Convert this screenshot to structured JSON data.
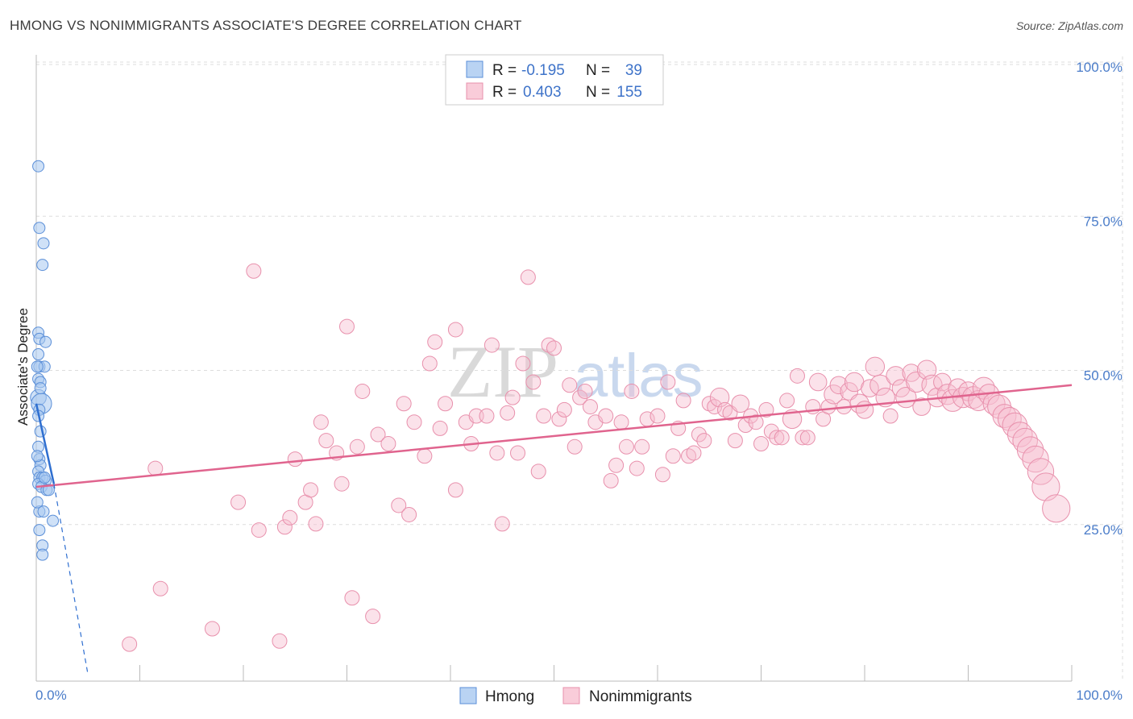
{
  "title": "HMONG VS NONIMMIGRANTS ASSOCIATE'S DEGREE CORRELATION CHART",
  "source": "Source: ZipAtlas.com",
  "watermark": {
    "zip": "ZIP",
    "atlas": "atlas"
  },
  "colors": {
    "hmong_fill": "#a8c8f0",
    "hmong_stroke": "#5b8fd8",
    "hmong_line": "#2f6fd0",
    "non_fill": "#f7bfd0",
    "non_stroke": "#e890ac",
    "non_line": "#e0648e",
    "grid": "#dddddd",
    "tick_text": "#4a7cc9"
  },
  "legend_top": {
    "rows": [
      {
        "r_label": "R =",
        "r_value": "-0.195",
        "n_label": "N =",
        "n_value": "39"
      },
      {
        "r_label": "R =",
        "r_value": "0.403",
        "n_label": "N =",
        "n_value": "155"
      }
    ]
  },
  "legend_bottom": {
    "hmong": "Hmong",
    "nonimmigrants": "Nonimmigrants"
  },
  "chart_data": {
    "type": "scatter",
    "title": "HMONG VS NONIMMIGRANTS ASSOCIATE'S DEGREE CORRELATION CHART",
    "xlabel": "",
    "ylabel": "Associate's Degree",
    "xlim": [
      0,
      100
    ],
    "ylim": [
      0,
      100
    ],
    "x_tick_labels": [
      "0.0%",
      "100.0%"
    ],
    "y_tick_labels": [
      "100.0%",
      "75.0%",
      "50.0%",
      "25.0%"
    ],
    "y_ticks": [
      100,
      75,
      50,
      25
    ],
    "series": [
      {
        "name": "Hmong",
        "R": -0.195,
        "N": 39,
        "trend_solid": {
          "x": [
            0.0,
            1.7
          ],
          "y": [
            45.0,
            32.0
          ]
        },
        "trend_dashed": {
          "x": [
            1.7,
            5.0
          ],
          "y": [
            32.0,
            1.0
          ]
        },
        "points": [
          {
            "x": 0.2,
            "y": 83.5,
            "s": 1
          },
          {
            "x": 0.3,
            "y": 73.5,
            "s": 1
          },
          {
            "x": 0.7,
            "y": 71.0,
            "s": 1
          },
          {
            "x": 0.6,
            "y": 67.5,
            "s": 1
          },
          {
            "x": 0.2,
            "y": 56.5,
            "s": 1
          },
          {
            "x": 0.3,
            "y": 55.5,
            "s": 1
          },
          {
            "x": 0.9,
            "y": 55.0,
            "s": 1
          },
          {
            "x": 0.2,
            "y": 53.0,
            "s": 1
          },
          {
            "x": 0.3,
            "y": 51.0,
            "s": 1
          },
          {
            "x": 0.8,
            "y": 51.0,
            "s": 1
          },
          {
            "x": 0.2,
            "y": 49.0,
            "s": 1
          },
          {
            "x": 0.4,
            "y": 48.5,
            "s": 1
          },
          {
            "x": 0.2,
            "y": 46.0,
            "s": 1.4
          },
          {
            "x": 0.5,
            "y": 45.0,
            "s": 1.8
          },
          {
            "x": 0.3,
            "y": 44.0,
            "s": 1
          },
          {
            "x": 0.2,
            "y": 43.0,
            "s": 1
          },
          {
            "x": 0.4,
            "y": 40.5,
            "s": 1
          },
          {
            "x": 0.2,
            "y": 38.0,
            "s": 1
          },
          {
            "x": 0.3,
            "y": 36.0,
            "s": 1
          },
          {
            "x": 0.4,
            "y": 35.0,
            "s": 1
          },
          {
            "x": 0.2,
            "y": 34.0,
            "s": 1
          },
          {
            "x": 0.3,
            "y": 33.0,
            "s": 1
          },
          {
            "x": 0.6,
            "y": 33.0,
            "s": 1
          },
          {
            "x": 0.9,
            "y": 32.5,
            "s": 1
          },
          {
            "x": 0.2,
            "y": 32.0,
            "s": 1
          },
          {
            "x": 0.5,
            "y": 31.5,
            "s": 1
          },
          {
            "x": 1.0,
            "y": 31.0,
            "s": 1
          },
          {
            "x": 1.2,
            "y": 31.0,
            "s": 1
          },
          {
            "x": 0.3,
            "y": 27.5,
            "s": 1
          },
          {
            "x": 0.7,
            "y": 27.5,
            "s": 1
          },
          {
            "x": 1.6,
            "y": 26.0,
            "s": 1
          },
          {
            "x": 0.3,
            "y": 24.5,
            "s": 1
          },
          {
            "x": 0.6,
            "y": 22.0,
            "s": 1
          },
          {
            "x": 0.6,
            "y": 20.5,
            "s": 1
          },
          {
            "x": 0.1,
            "y": 36.5,
            "s": 1
          },
          {
            "x": 0.1,
            "y": 29.0,
            "s": 1
          },
          {
            "x": 0.4,
            "y": 47.5,
            "s": 1
          },
          {
            "x": 0.1,
            "y": 51.0,
            "s": 1
          },
          {
            "x": 0.8,
            "y": 33.0,
            "s": 1
          }
        ]
      },
      {
        "name": "Nonimmigrants",
        "R": 0.403,
        "N": 155,
        "trend_solid": {
          "x": [
            0.0,
            100.0
          ],
          "y": [
            31.5,
            48.0
          ]
        },
        "points": [
          {
            "x": 9,
            "y": 6,
            "s": 1
          },
          {
            "x": 12,
            "y": 15,
            "s": 1
          },
          {
            "x": 11.5,
            "y": 34.5,
            "s": 1
          },
          {
            "x": 17,
            "y": 8.5,
            "s": 1
          },
          {
            "x": 19.5,
            "y": 29,
            "s": 1
          },
          {
            "x": 21,
            "y": 66.5,
            "s": 1
          },
          {
            "x": 21.5,
            "y": 24.5,
            "s": 1
          },
          {
            "x": 23.5,
            "y": 6.5,
            "s": 1
          },
          {
            "x": 24,
            "y": 25,
            "s": 1
          },
          {
            "x": 24.5,
            "y": 26.5,
            "s": 1
          },
          {
            "x": 25,
            "y": 36,
            "s": 1
          },
          {
            "x": 26,
            "y": 29,
            "s": 1
          },
          {
            "x": 26.5,
            "y": 31,
            "s": 1
          },
          {
            "x": 27,
            "y": 25.5,
            "s": 1
          },
          {
            "x": 27.5,
            "y": 42,
            "s": 1
          },
          {
            "x": 28,
            "y": 39,
            "s": 1
          },
          {
            "x": 29,
            "y": 37,
            "s": 1
          },
          {
            "x": 29.5,
            "y": 32,
            "s": 1
          },
          {
            "x": 30,
            "y": 57.5,
            "s": 1
          },
          {
            "x": 30.5,
            "y": 13.5,
            "s": 1
          },
          {
            "x": 31,
            "y": 38,
            "s": 1
          },
          {
            "x": 31.5,
            "y": 47,
            "s": 1
          },
          {
            "x": 32.5,
            "y": 10.5,
            "s": 1
          },
          {
            "x": 33,
            "y": 40,
            "s": 1
          },
          {
            "x": 34,
            "y": 38.5,
            "s": 1
          },
          {
            "x": 35,
            "y": 28.5,
            "s": 1
          },
          {
            "x": 35.5,
            "y": 45,
            "s": 1
          },
          {
            "x": 36,
            "y": 27,
            "s": 1
          },
          {
            "x": 36.5,
            "y": 42,
            "s": 1
          },
          {
            "x": 37.5,
            "y": 36.5,
            "s": 1
          },
          {
            "x": 38,
            "y": 51.5,
            "s": 1
          },
          {
            "x": 38.5,
            "y": 55,
            "s": 1
          },
          {
            "x": 39,
            "y": 41,
            "s": 1
          },
          {
            "x": 39.5,
            "y": 45,
            "s": 1
          },
          {
            "x": 40.5,
            "y": 57,
            "s": 1
          },
          {
            "x": 40.5,
            "y": 31,
            "s": 1
          },
          {
            "x": 41.5,
            "y": 42,
            "s": 1
          },
          {
            "x": 42,
            "y": 38.5,
            "s": 1
          },
          {
            "x": 42.5,
            "y": 43,
            "s": 1
          },
          {
            "x": 43.5,
            "y": 43,
            "s": 1
          },
          {
            "x": 44,
            "y": 54.5,
            "s": 1
          },
          {
            "x": 44.5,
            "y": 37,
            "s": 1
          },
          {
            "x": 45,
            "y": 25.5,
            "s": 1
          },
          {
            "x": 45.5,
            "y": 43.5,
            "s": 1
          },
          {
            "x": 46,
            "y": 46,
            "s": 1
          },
          {
            "x": 46.5,
            "y": 37,
            "s": 1
          },
          {
            "x": 47,
            "y": 51.5,
            "s": 1
          },
          {
            "x": 47.5,
            "y": 65.5,
            "s": 1
          },
          {
            "x": 48,
            "y": 48.5,
            "s": 1
          },
          {
            "x": 48.5,
            "y": 34,
            "s": 1
          },
          {
            "x": 49,
            "y": 43,
            "s": 1
          },
          {
            "x": 49.5,
            "y": 54.5,
            "s": 1
          },
          {
            "x": 50,
            "y": 54,
            "s": 1
          },
          {
            "x": 50.5,
            "y": 42.5,
            "s": 1
          },
          {
            "x": 51,
            "y": 44,
            "s": 1
          },
          {
            "x": 51.5,
            "y": 48,
            "s": 1
          },
          {
            "x": 52,
            "y": 38,
            "s": 1
          },
          {
            "x": 52.5,
            "y": 46,
            "s": 1
          },
          {
            "x": 53,
            "y": 47,
            "s": 1
          },
          {
            "x": 53.5,
            "y": 44.5,
            "s": 1
          },
          {
            "x": 54,
            "y": 42,
            "s": 1
          },
          {
            "x": 55,
            "y": 43,
            "s": 1
          },
          {
            "x": 55.5,
            "y": 32.5,
            "s": 1
          },
          {
            "x": 56,
            "y": 35,
            "s": 1
          },
          {
            "x": 56.5,
            "y": 42,
            "s": 1
          },
          {
            "x": 57,
            "y": 38,
            "s": 1
          },
          {
            "x": 57.5,
            "y": 47,
            "s": 1
          },
          {
            "x": 58,
            "y": 34.5,
            "s": 1
          },
          {
            "x": 58.5,
            "y": 38,
            "s": 1
          },
          {
            "x": 59,
            "y": 42.5,
            "s": 1
          },
          {
            "x": 60,
            "y": 43,
            "s": 1
          },
          {
            "x": 60.5,
            "y": 33.5,
            "s": 1
          },
          {
            "x": 61,
            "y": 48.5,
            "s": 1
          },
          {
            "x": 61.5,
            "y": 36.5,
            "s": 1
          },
          {
            "x": 62,
            "y": 41,
            "s": 1
          },
          {
            "x": 62.5,
            "y": 45.5,
            "s": 1
          },
          {
            "x": 63,
            "y": 36.5,
            "s": 1
          },
          {
            "x": 63.5,
            "y": 37,
            "s": 1
          },
          {
            "x": 64,
            "y": 40,
            "s": 1
          },
          {
            "x": 64.5,
            "y": 39,
            "s": 1
          },
          {
            "x": 65,
            "y": 45,
            "s": 1
          },
          {
            "x": 65.5,
            "y": 44.5,
            "s": 1
          },
          {
            "x": 66,
            "y": 46,
            "s": 1.3
          },
          {
            "x": 66.5,
            "y": 44,
            "s": 1
          },
          {
            "x": 67,
            "y": 43.5,
            "s": 1
          },
          {
            "x": 67.5,
            "y": 39,
            "s": 1
          },
          {
            "x": 68,
            "y": 45,
            "s": 1.2
          },
          {
            "x": 68.5,
            "y": 41.5,
            "s": 1
          },
          {
            "x": 69,
            "y": 43,
            "s": 1
          },
          {
            "x": 69.5,
            "y": 42,
            "s": 1
          },
          {
            "x": 70,
            "y": 38.5,
            "s": 1
          },
          {
            "x": 70.5,
            "y": 44,
            "s": 1
          },
          {
            "x": 71,
            "y": 40.5,
            "s": 1
          },
          {
            "x": 71.5,
            "y": 39.5,
            "s": 1
          },
          {
            "x": 72,
            "y": 39.5,
            "s": 1
          },
          {
            "x": 72.5,
            "y": 45.5,
            "s": 1
          },
          {
            "x": 73,
            "y": 42.5,
            "s": 1.3
          },
          {
            "x": 73.5,
            "y": 49.5,
            "s": 1
          },
          {
            "x": 74,
            "y": 39.5,
            "s": 1
          },
          {
            "x": 74.5,
            "y": 39.5,
            "s": 1
          },
          {
            "x": 75,
            "y": 44.5,
            "s": 1
          },
          {
            "x": 75.5,
            "y": 48.5,
            "s": 1.2
          },
          {
            "x": 76,
            "y": 42.5,
            "s": 1
          },
          {
            "x": 76.5,
            "y": 44.5,
            "s": 1
          },
          {
            "x": 77,
            "y": 46.5,
            "s": 1.3
          },
          {
            "x": 77.5,
            "y": 48,
            "s": 1.2
          },
          {
            "x": 78,
            "y": 44.5,
            "s": 1
          },
          {
            "x": 78.5,
            "y": 47,
            "s": 1.2
          },
          {
            "x": 79,
            "y": 48.5,
            "s": 1.3
          },
          {
            "x": 79.5,
            "y": 45,
            "s": 1.3
          },
          {
            "x": 80,
            "y": 44,
            "s": 1.2
          },
          {
            "x": 80.5,
            "y": 47.5,
            "s": 1.2
          },
          {
            "x": 81,
            "y": 51,
            "s": 1.3
          },
          {
            "x": 81.5,
            "y": 48,
            "s": 1.4
          },
          {
            "x": 82,
            "y": 46,
            "s": 1.3
          },
          {
            "x": 82.5,
            "y": 43,
            "s": 1
          },
          {
            "x": 83,
            "y": 49.5,
            "s": 1.3
          },
          {
            "x": 83.5,
            "y": 47.5,
            "s": 1.2
          },
          {
            "x": 84,
            "y": 46,
            "s": 1.4
          },
          {
            "x": 84.5,
            "y": 50,
            "s": 1.2
          },
          {
            "x": 85,
            "y": 48.5,
            "s": 1.4
          },
          {
            "x": 85.5,
            "y": 44.5,
            "s": 1.2
          },
          {
            "x": 86,
            "y": 50.5,
            "s": 1.3
          },
          {
            "x": 86.5,
            "y": 48,
            "s": 1.4
          },
          {
            "x": 87,
            "y": 46,
            "s": 1.3
          },
          {
            "x": 87.5,
            "y": 48.5,
            "s": 1.2
          },
          {
            "x": 88,
            "y": 46.5,
            "s": 1.4
          },
          {
            "x": 88.5,
            "y": 45.5,
            "s": 1.5
          },
          {
            "x": 89,
            "y": 47.5,
            "s": 1.3
          },
          {
            "x": 89.5,
            "y": 46,
            "s": 1.4
          },
          {
            "x": 90,
            "y": 47,
            "s": 1.3
          },
          {
            "x": 90.5,
            "y": 46,
            "s": 1.5
          },
          {
            "x": 91,
            "y": 45.5,
            "s": 1.4
          },
          {
            "x": 91.5,
            "y": 47.5,
            "s": 1.5
          },
          {
            "x": 92,
            "y": 46.5,
            "s": 1.4
          },
          {
            "x": 92.5,
            "y": 45,
            "s": 1.5
          },
          {
            "x": 93,
            "y": 44.5,
            "s": 1.6
          },
          {
            "x": 93.5,
            "y": 43,
            "s": 1.6
          },
          {
            "x": 94,
            "y": 42.5,
            "s": 1.6
          },
          {
            "x": 94.5,
            "y": 41.5,
            "s": 1.7
          },
          {
            "x": 95,
            "y": 40,
            "s": 1.7
          },
          {
            "x": 95.5,
            "y": 39,
            "s": 1.7
          },
          {
            "x": 96,
            "y": 37.5,
            "s": 1.8
          },
          {
            "x": 96.5,
            "y": 36,
            "s": 1.8
          },
          {
            "x": 97,
            "y": 34,
            "s": 1.8
          },
          {
            "x": 97.5,
            "y": 31.5,
            "s": 1.9
          },
          {
            "x": 98.5,
            "y": 28,
            "s": 1.9
          }
        ]
      }
    ]
  }
}
